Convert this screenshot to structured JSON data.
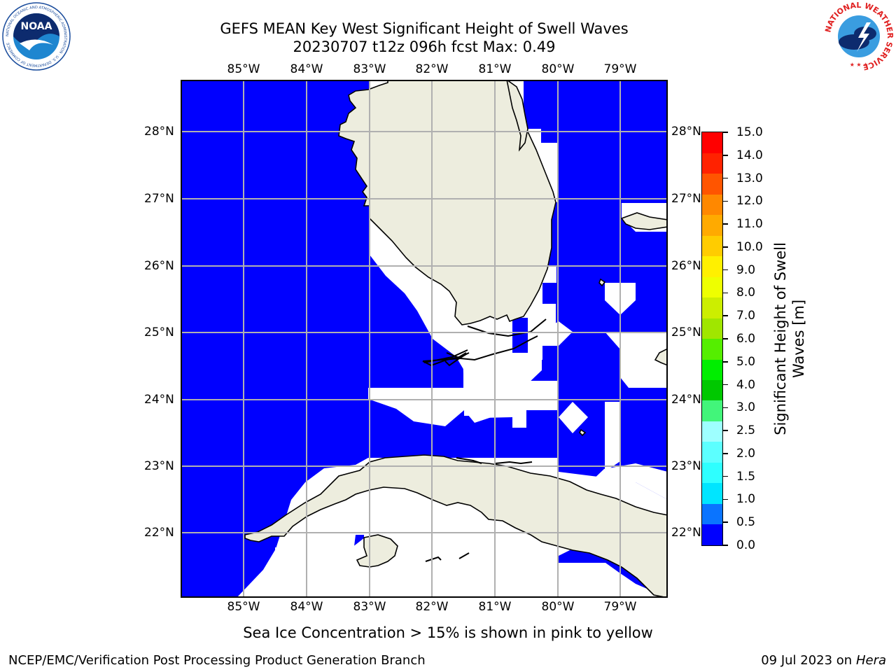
{
  "title_line1": "GEFS MEAN Key West Significant Height of Swell Waves",
  "title_line2": "20230707 t12z 096h fcst   Max: 0.49",
  "map": {
    "lon_labels": [
      "85°W",
      "84°W",
      "83°W",
      "82°W",
      "81°W",
      "80°W",
      "79°W"
    ],
    "lat_labels": [
      "28°N",
      "27°N",
      "26°N",
      "25°N",
      "24°N",
      "23°N",
      "22°N"
    ],
    "lon_range": [
      -86.0,
      -78.25
    ],
    "lat_range": [
      21.05,
      28.75
    ],
    "water_color": "#0000ff",
    "land_color": "#ededde",
    "nodata_color": "#ffffff",
    "max_value": 0.49
  },
  "colorbar": {
    "title": "Significant Height of Swell Waves [m]",
    "ticks": [
      "0.0",
      "0.5",
      "1.0",
      "1.5",
      "2.0",
      "2.5",
      "3.0",
      "4.0",
      "5.0",
      "6.0",
      "7.0",
      "8.0",
      "9.0",
      "10.0",
      "11.0",
      "12.0",
      "13.0",
      "14.0",
      "15.0"
    ],
    "colors": [
      "#0000ff",
      "#0a74ff",
      "#00e5ff",
      "#2effff",
      "#5cffff",
      "#9effff",
      "#42f57a",
      "#00c800",
      "#00ee00",
      "#55ee00",
      "#a0e600",
      "#ccee00",
      "#eeff00",
      "#fff000",
      "#ffcc00",
      "#ffaa00",
      "#ff8800",
      "#ff5500",
      "#ff2200",
      "#ff0000"
    ]
  },
  "footnote": "Sea Ice Concentration > 15% is shown in pink to yellow",
  "credit": "NCEP/EMC/Verification Post Processing Product Generation Branch",
  "date": "09 Jul 2023 on ",
  "date_host": "Hera",
  "logos": {
    "left": {
      "text": "NOAA",
      "ring": "NATIONAL OCEANIC AND ATMOSPHERIC ADMINISTRATION · U.S. DEPARTMENT OF COMMERCE"
    },
    "right": {
      "ring": "NATIONAL WEATHER SERVICE"
    }
  }
}
